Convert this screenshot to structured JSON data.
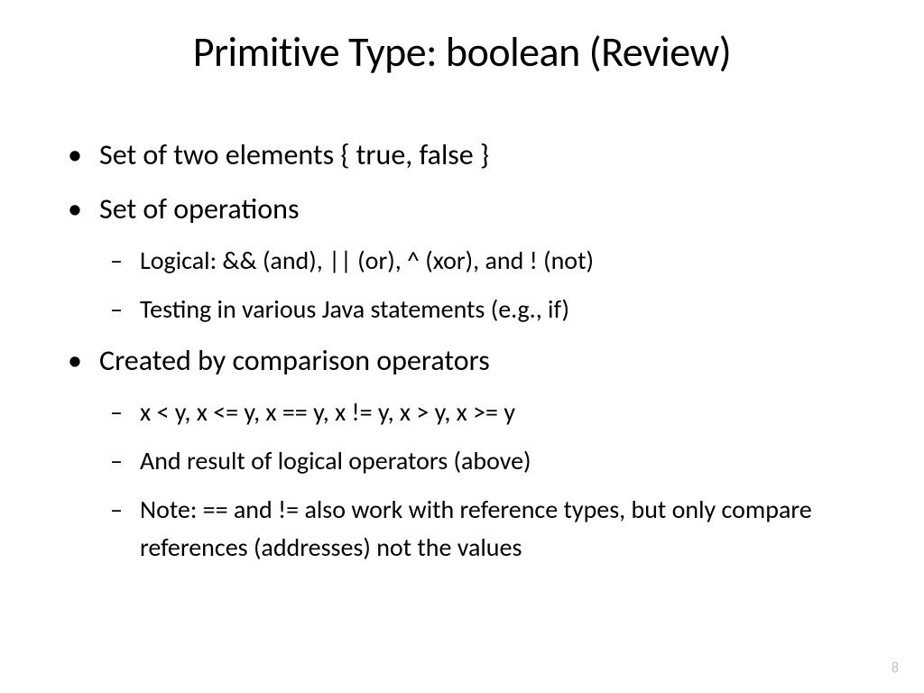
{
  "slide": {
    "title": "Primitive Type: boolean (Review)",
    "bullets": {
      "b1": "Set of two elements { true, false }",
      "b2": "Set of operations",
      "b2_1": "Logical: && (and), || (or), ^ (xor), and ! (not)",
      "b2_2": "Testing in various Java statements (e.g., if)",
      "b3": "Created by comparison operators",
      "b3_1": "x < y, x <= y, x == y, x != y, x > y, x >= y",
      "b3_2": "And result of logical operators (above)",
      "b3_3": "Note: == and != also work with reference types, but only compare references (addresses) not the values"
    },
    "page_number": "8"
  },
  "styling": {
    "background_color": "#ffffff",
    "text_color": "#000000",
    "page_number_color": "#bfbfbf",
    "title_fontsize": 46,
    "bullet_l1_fontsize": 32,
    "bullet_l2_fontsize": 28,
    "font_family": "Calibri"
  }
}
